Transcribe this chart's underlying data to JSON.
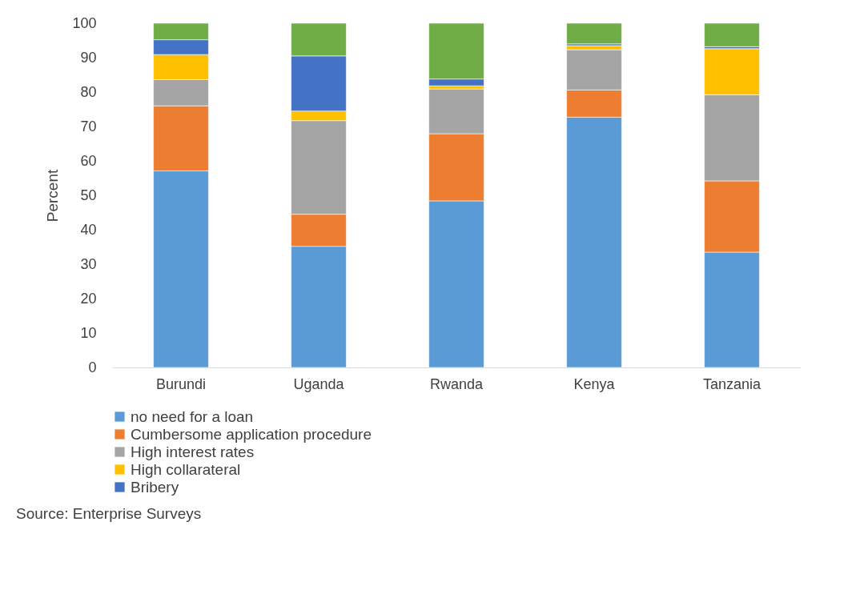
{
  "chart_data": {
    "type": "bar",
    "stacked": true,
    "ylabel": "Percent",
    "categories": [
      "Burundi",
      "Uganda",
      "Rwanda",
      "Kenya",
      "Tanzania"
    ],
    "series": [
      {
        "name": "no need for a loan",
        "color": "#5b9bd5",
        "values": [
          57.1,
          35.2,
          48.4,
          72.7,
          33.5
        ]
      },
      {
        "name": "Cumbersome application procedure",
        "color": "#ed7d31",
        "values": [
          18.9,
          9.3,
          19.5,
          7.9,
          20.7
        ]
      },
      {
        "name": "High interest rates",
        "color": "#a5a5a5",
        "values": [
          7.6,
          27.2,
          13.0,
          11.7,
          25.0
        ]
      },
      {
        "name": "High collarateral",
        "color": "#ffc000",
        "values": [
          7.3,
          2.8,
          0.9,
          1.2,
          13.4
        ]
      },
      {
        "name": "Bribery",
        "color": "#4472c4",
        "values": [
          4.3,
          16.0,
          2.0,
          0.5,
          0.6
        ]
      },
      {
        "color": "#70ad47",
        "values": [
          4.8,
          9.5,
          16.2,
          6.0,
          6.8
        ]
      }
    ],
    "ylim": [
      0,
      100
    ],
    "yticks": [
      0,
      10,
      20,
      30,
      40,
      50,
      60,
      70,
      80,
      90,
      100
    ],
    "grid": false,
    "legend": "bottom",
    "annotations": [
      "Source: Enterprise Surveys"
    ]
  }
}
